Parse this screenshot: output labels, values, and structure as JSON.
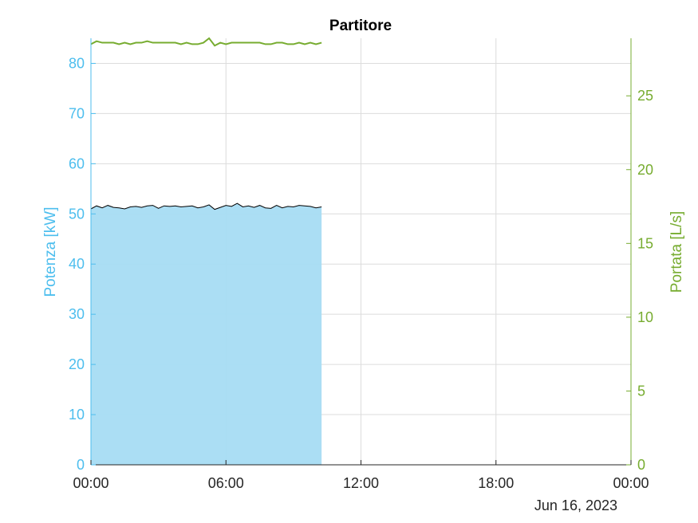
{
  "chart_data": {
    "type": "area",
    "title": "Partitore",
    "xlabel": "",
    "date_label": "Jun 16, 2023",
    "x_tick_labels": [
      "00:00",
      "06:00",
      "12:00",
      "18:00",
      "00:00"
    ],
    "xlim_hours": [
      0,
      24
    ],
    "grid": true,
    "y_left": {
      "label": "Potenza [kW]",
      "lim": [
        0,
        85
      ],
      "ticks": [
        0,
        10,
        20,
        30,
        40,
        50,
        60,
        70,
        80
      ],
      "color": "#4dbeee"
    },
    "y_right": {
      "label": "Portata [L/s]",
      "lim": [
        0,
        28.9
      ],
      "ticks": [
        0,
        5,
        10,
        15,
        20,
        25
      ],
      "color": "#77ac30"
    },
    "series": [
      {
        "axis": "left",
        "style": "filled-area",
        "fill_color": "#a7dcf3",
        "line_color": "#000000",
        "x_hours": [
          0.0,
          0.25,
          0.5,
          0.75,
          1.0,
          1.25,
          1.5,
          1.75,
          2.0,
          2.25,
          2.5,
          2.75,
          3.0,
          3.25,
          3.5,
          3.75,
          4.0,
          4.25,
          4.5,
          4.75,
          5.0,
          5.25,
          5.5,
          5.75,
          6.0,
          6.25,
          6.5,
          6.75,
          7.0,
          7.25,
          7.5,
          7.75,
          8.0,
          8.25,
          8.5,
          8.75,
          9.0,
          9.25,
          9.5,
          9.75,
          10.0,
          10.25
        ],
        "values": [
          51.0,
          51.6,
          51.2,
          51.7,
          51.3,
          51.2,
          51.0,
          51.4,
          51.5,
          51.3,
          51.6,
          51.7,
          51.1,
          51.6,
          51.5,
          51.6,
          51.4,
          51.5,
          51.6,
          51.2,
          51.4,
          51.8,
          50.9,
          51.3,
          51.7,
          51.5,
          52.1,
          51.4,
          51.6,
          51.3,
          51.7,
          51.2,
          51.1,
          51.7,
          51.2,
          51.5,
          51.4,
          51.7,
          51.6,
          51.5,
          51.2,
          51.4
        ]
      },
      {
        "axis": "right",
        "style": "line",
        "line_color": "#77ac30",
        "x_hours": [
          0.0,
          0.25,
          0.5,
          0.75,
          1.0,
          1.25,
          1.5,
          1.75,
          2.0,
          2.25,
          2.5,
          2.75,
          3.0,
          3.25,
          3.5,
          3.75,
          4.0,
          4.25,
          4.5,
          4.75,
          5.0,
          5.25,
          5.5,
          5.75,
          6.0,
          6.25,
          6.5,
          6.75,
          7.0,
          7.25,
          7.5,
          7.75,
          8.0,
          8.25,
          8.5,
          8.75,
          9.0,
          9.25,
          9.5,
          9.75,
          10.0,
          10.25
        ],
        "values": [
          28.5,
          28.7,
          28.6,
          28.6,
          28.6,
          28.5,
          28.6,
          28.5,
          28.6,
          28.6,
          28.7,
          28.6,
          28.6,
          28.6,
          28.6,
          28.6,
          28.5,
          28.6,
          28.5,
          28.5,
          28.6,
          28.9,
          28.4,
          28.6,
          28.5,
          28.6,
          28.6,
          28.6,
          28.6,
          28.6,
          28.6,
          28.5,
          28.5,
          28.6,
          28.6,
          28.5,
          28.5,
          28.6,
          28.5,
          28.6,
          28.5,
          28.6
        ]
      }
    ]
  }
}
